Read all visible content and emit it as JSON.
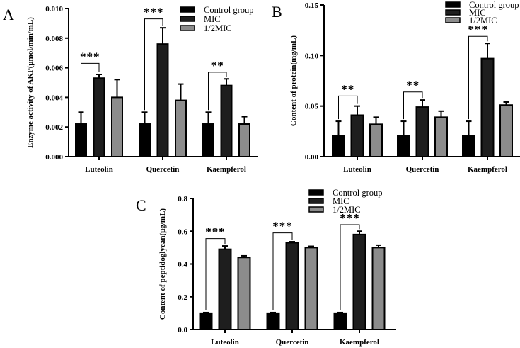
{
  "chart_data": [
    {
      "type": "bar",
      "panel_label": "A",
      "title": "",
      "xlabel": "",
      "ylabel": "Enzyme activity of AKP(μmol/min/mL)",
      "ylim": [
        0,
        0.01
      ],
      "yticks": [
        "0.000",
        "0.002",
        "0.004",
        "0.006",
        "0.008",
        "0.010"
      ],
      "ytick_values": [
        0,
        0.002,
        0.004,
        0.006,
        0.008,
        0.01
      ],
      "categories": [
        "Luteolin",
        "Quercetin",
        "Kaempferol"
      ],
      "legend_position": "top-right",
      "series": [
        {
          "name": "Control group",
          "color": "#000000",
          "values": [
            0.0022,
            0.0022,
            0.0022
          ],
          "errors": [
            0.0008,
            0.0008,
            0.0008
          ]
        },
        {
          "name": "MIC",
          "color": "#1e1e1e",
          "values": [
            0.0053,
            0.0076,
            0.0048
          ],
          "errors": [
            0.00025,
            0.0011,
            0.00045
          ]
        },
        {
          "name": "1/2MIC",
          "color": "#8c8c8c",
          "values": [
            0.004,
            0.0038,
            0.0022
          ],
          "errors": [
            0.0012,
            0.0011,
            0.0005
          ]
        }
      ],
      "significance": [
        {
          "category": "Luteolin",
          "label": "***",
          "level": 0.0063
        },
        {
          "category": "Quercetin",
          "label": "***",
          "level": 0.0093
        },
        {
          "category": "Kaempferol",
          "label": "**",
          "level": 0.0057
        }
      ]
    },
    {
      "type": "bar",
      "panel_label": "B",
      "title": "",
      "xlabel": "",
      "ylabel": "Content of protein(mg/mL)",
      "ylim": [
        0,
        0.15
      ],
      "yticks": [
        "0.00",
        "0.05",
        "0.10",
        "0.15"
      ],
      "ytick_values": [
        0,
        0.05,
        0.1,
        0.15
      ],
      "categories": [
        "Luteolin",
        "Quercetin",
        "Kaempferol"
      ],
      "legend_position": "top-right",
      "series": [
        {
          "name": "Control group",
          "color": "#000000",
          "values": [
            0.021,
            0.021,
            0.021
          ],
          "errors": [
            0.014,
            0.014,
            0.014
          ]
        },
        {
          "name": "MIC",
          "color": "#1e1e1e",
          "values": [
            0.041,
            0.049,
            0.097
          ],
          "errors": [
            0.009,
            0.007,
            0.015
          ]
        },
        {
          "name": "1/2MIC",
          "color": "#8c8c8c",
          "values": [
            0.032,
            0.039,
            0.051
          ],
          "errors": [
            0.007,
            0.006,
            0.003
          ]
        }
      ],
      "significance": [
        {
          "category": "Luteolin",
          "label": "**",
          "level": 0.06
        },
        {
          "category": "Quercetin",
          "label": "**",
          "level": 0.064
        },
        {
          "category": "Kaempferol",
          "label": "***",
          "level": 0.119
        }
      ]
    },
    {
      "type": "bar",
      "panel_label": "C",
      "title": "",
      "xlabel": "",
      "ylabel": "Content of peptidoglycan(μg/mL)",
      "ylim": [
        0,
        0.8
      ],
      "yticks": [
        "0.0",
        "0.2",
        "0.4",
        "0.6",
        "0.8"
      ],
      "ytick_values": [
        0,
        0.2,
        0.4,
        0.6,
        0.8
      ],
      "categories": [
        "Luteolin",
        "Quercetin",
        "Kaempferol"
      ],
      "legend_position": "top-right",
      "series": [
        {
          "name": "Control group",
          "color": "#000000",
          "values": [
            0.1,
            0.1,
            0.1
          ],
          "errors": [
            0.004,
            0.004,
            0.004
          ]
        },
        {
          "name": "MIC",
          "color": "#1e1e1e",
          "values": [
            0.49,
            0.53,
            0.58
          ],
          "errors": [
            0.02,
            0.006,
            0.02
          ]
        },
        {
          "name": "1/2MIC",
          "color": "#8c8c8c",
          "values": [
            0.44,
            0.5,
            0.5
          ],
          "errors": [
            0.01,
            0.008,
            0.015
          ]
        }
      ],
      "significance": [
        {
          "category": "Luteolin",
          "label": "***",
          "level": 0.555
        },
        {
          "category": "Quercetin",
          "label": "***",
          "level": 0.59
        },
        {
          "category": "Kaempferol",
          "label": "***",
          "level": 0.64
        }
      ]
    }
  ]
}
